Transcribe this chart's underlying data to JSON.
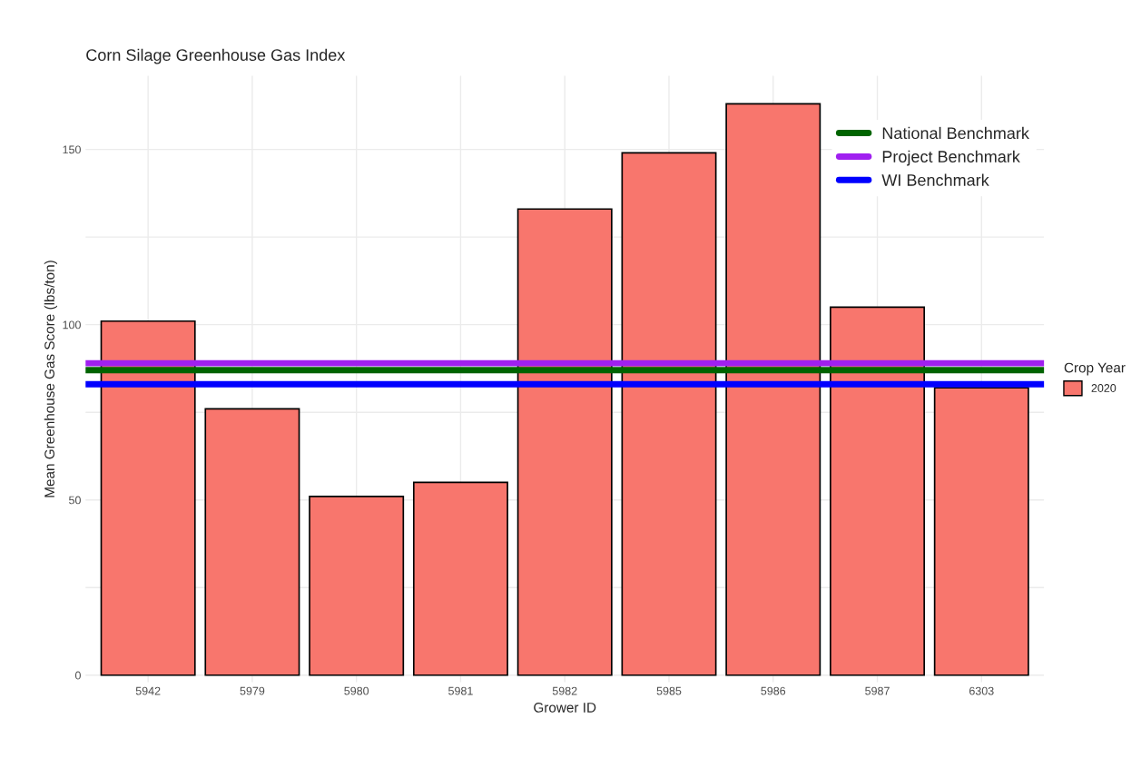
{
  "chart_data": {
    "type": "bar",
    "title": "Corn Silage Greenhouse Gas Index",
    "xlabel": "Grower ID",
    "ylabel": "Mean Greenhouse Gas Score (lbs/ton)",
    "legend_title": "Crop Year",
    "categories": [
      "5942",
      "5979",
      "5980",
      "5981",
      "5982",
      "5985",
      "5986",
      "5987",
      "6303"
    ],
    "series": [
      {
        "name": "2020",
        "color": "#f8766d",
        "values": [
          101,
          76,
          51,
          55,
          133,
          149,
          163,
          105,
          82
        ]
      }
    ],
    "ylim": [
      -2,
      171
    ],
    "yticks": [
      0,
      {
        "value": 25,
        "label": null
      },
      50,
      {
        "value": 75,
        "label": null
      },
      100,
      {
        "value": 125,
        "label": null
      },
      150
    ],
    "ref_lines": [
      {
        "axis": "y",
        "value": 87,
        "label": "National Benchmark",
        "color": "#006400"
      },
      {
        "axis": "y",
        "value": 89,
        "label": "Project Benchmark",
        "color": "#a020f0"
      },
      {
        "axis": "y",
        "value": 83,
        "label": "WI Benchmark",
        "color": "#0000ff"
      }
    ],
    "grid": true,
    "legend": "right"
  }
}
